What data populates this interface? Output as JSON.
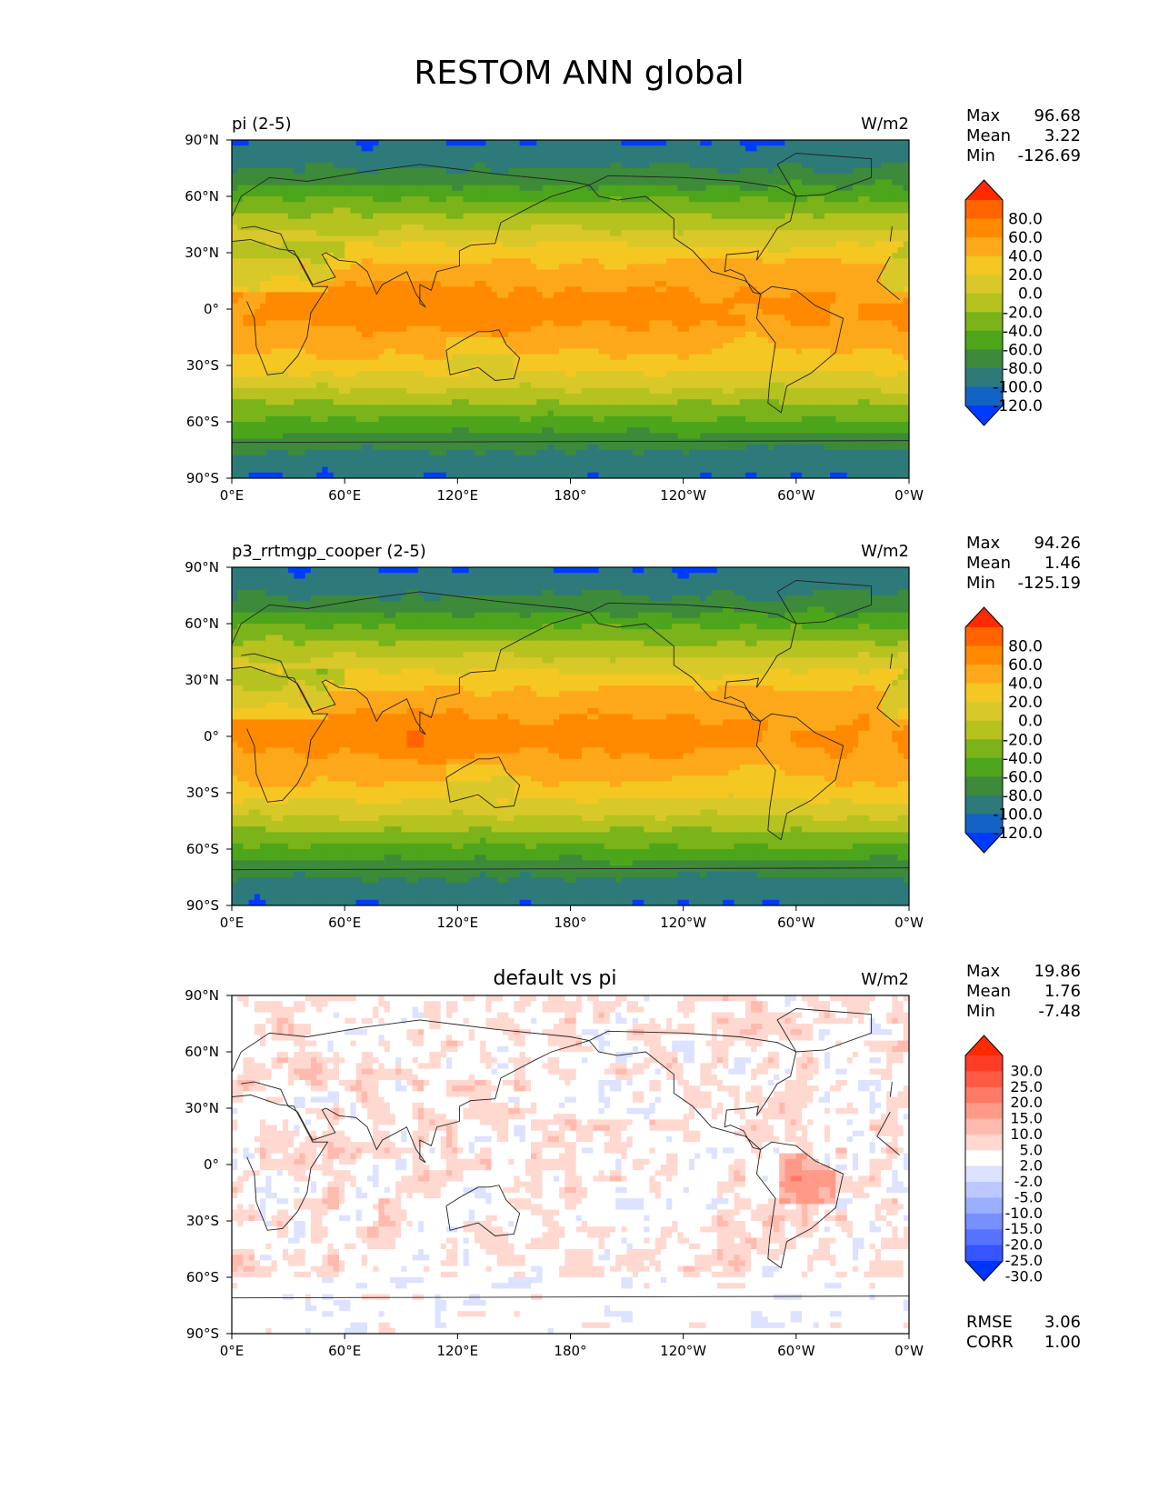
{
  "figure": {
    "title": "RESTOM ANN global",
    "lon_ticks": [
      "0°E",
      "60°E",
      "120°E",
      "180°",
      "120°W",
      "60°W",
      "0°W"
    ],
    "lat_ticks": [
      "90°N",
      "60°N",
      "30°N",
      "0°",
      "30°S",
      "60°S",
      "90°S"
    ]
  },
  "panels": [
    {
      "id": "test",
      "left_title": "pi (2-5)",
      "center_title": "",
      "units": "W/m2",
      "stats": [
        {
          "label": "Max",
          "value": "96.68"
        },
        {
          "label": "Mean",
          "value": "3.22"
        },
        {
          "label": "Min",
          "value": "-126.69"
        }
      ],
      "colorbar_ticks": [
        "80.0",
        "60.0",
        "40.0",
        "20.0",
        "0.0",
        "-20.0",
        "-40.0",
        "-60.0",
        "-80.0",
        "-100.0",
        "-120.0"
      ],
      "colorbar_colors": [
        "#ff2a00",
        "#ff6400",
        "#ff8a00",
        "#fda81b",
        "#f5c722",
        "#d9c829",
        "#b5c21f",
        "#7ab31a",
        "#4da51c",
        "#3d8a3a",
        "#2e7a7a",
        "#1263c4",
        "#003cff"
      ],
      "field_type": "toa"
    },
    {
      "id": "ref",
      "left_title": "p3_rrtmgp_cooper (2-5)",
      "center_title": "",
      "units": "W/m2",
      "stats": [
        {
          "label": "Max",
          "value": "94.26"
        },
        {
          "label": "Mean",
          "value": "1.46"
        },
        {
          "label": "Min",
          "value": "-125.19"
        }
      ],
      "colorbar_ticks": [
        "80.0",
        "60.0",
        "40.0",
        "20.0",
        "0.0",
        "-20.0",
        "-40.0",
        "-60.0",
        "-80.0",
        "-100.0",
        "-120.0"
      ],
      "colorbar_colors": [
        "#ff2a00",
        "#ff6400",
        "#ff8a00",
        "#fda81b",
        "#f5c722",
        "#d9c829",
        "#b5c21f",
        "#7ab31a",
        "#4da51c",
        "#3d8a3a",
        "#2e7a7a",
        "#1263c4",
        "#003cff"
      ],
      "field_type": "toa"
    },
    {
      "id": "diff",
      "left_title": "",
      "center_title": "default vs pi",
      "units": "W/m2",
      "stats": [
        {
          "label": "Max",
          "value": "19.86"
        },
        {
          "label": "Mean",
          "value": "1.76"
        },
        {
          "label": "Min",
          "value": "-7.48"
        }
      ],
      "colorbar_ticks": [
        "30.0",
        "25.0",
        "20.0",
        "15.0",
        "10.0",
        "5.0",
        "2.0",
        "-2.0",
        "-5.0",
        "-10.0",
        "-15.0",
        "-20.0",
        "-25.0",
        "-30.0"
      ],
      "colorbar_colors": [
        "#ff2a00",
        "#ff3c26",
        "#ff5a44",
        "#ff7a66",
        "#ff9a88",
        "#ffbaae",
        "#ffd8d0",
        "#ffffff",
        "#dce2ff",
        "#bcc8ff",
        "#9aaeff",
        "#7890ff",
        "#5672ff",
        "#3455ff",
        "#0035ff"
      ],
      "footer_stats": [
        {
          "label": "RMSE",
          "value": "3.06"
        },
        {
          "label": "CORR",
          "value": "1.00"
        }
      ],
      "field_type": "diff"
    }
  ]
}
